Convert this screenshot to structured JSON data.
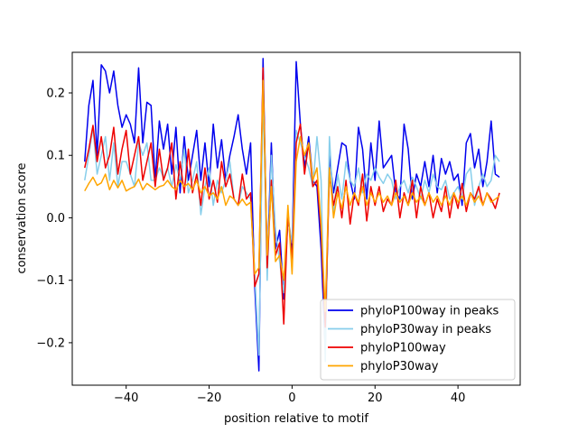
{
  "chart_data": {
    "type": "line",
    "title": "",
    "xlabel": "position relative to motif",
    "ylabel": "conservation score",
    "xlim": [
      -53,
      55
    ],
    "ylim": [
      -0.268,
      0.265
    ],
    "xticks": [
      -40,
      -20,
      0,
      20,
      40
    ],
    "yticks": [
      -0.2,
      -0.1,
      0.0,
      0.1,
      0.2
    ],
    "xtick_labels": [
      "−40",
      "−20",
      "0",
      "20",
      "40"
    ],
    "ytick_labels": [
      "−0.2",
      "−0.1",
      "0.0",
      "0.1",
      "0.2"
    ],
    "grid": false,
    "legend_position": "lower-right",
    "x": [
      -50,
      -49,
      -48,
      -47,
      -46,
      -45,
      -44,
      -43,
      -42,
      -41,
      -40,
      -39,
      -38,
      -37,
      -36,
      -35,
      -34,
      -33,
      -32,
      -31,
      -30,
      -29,
      -28,
      -27,
      -26,
      -25,
      -24,
      -23,
      -22,
      -21,
      -20,
      -19,
      -18,
      -17,
      -16,
      -15,
      -14,
      -13,
      -12,
      -11,
      -10,
      -9,
      -8,
      -7,
      -6,
      -5,
      -4,
      -3,
      -2,
      -1,
      0,
      1,
      2,
      3,
      4,
      5,
      6,
      7,
      8,
      9,
      10,
      11,
      12,
      13,
      14,
      15,
      16,
      17,
      18,
      19,
      20,
      21,
      22,
      23,
      24,
      25,
      26,
      27,
      28,
      29,
      30,
      31,
      32,
      33,
      34,
      35,
      36,
      37,
      38,
      39,
      40,
      41,
      42,
      43,
      44,
      45,
      46,
      47,
      48,
      49,
      50
    ],
    "series": [
      {
        "name": "phyloP100way in peaks",
        "color": "#0000ee",
        "values": [
          0.09,
          0.18,
          0.22,
          0.1,
          0.245,
          0.235,
          0.2,
          0.235,
          0.18,
          0.145,
          0.165,
          0.15,
          0.12,
          0.24,
          0.12,
          0.185,
          0.18,
          0.06,
          0.155,
          0.11,
          0.15,
          0.07,
          0.145,
          0.04,
          0.13,
          0.06,
          0.1,
          0.14,
          0.06,
          0.12,
          0.05,
          0.15,
          0.08,
          0.125,
          0.06,
          0.1,
          0.13,
          0.165,
          0.11,
          0.07,
          0.12,
          -0.11,
          -0.245,
          0.255,
          -0.08,
          0.12,
          -0.05,
          -0.02,
          -0.13,
          0.0,
          -0.05,
          0.25,
          0.15,
          0.08,
          0.13,
          0.06,
          0.05,
          -0.05,
          -0.21,
          0.1,
          0.04,
          0.08,
          0.12,
          0.115,
          0.06,
          0.03,
          0.145,
          0.11,
          0.03,
          0.12,
          0.06,
          0.155,
          0.08,
          0.09,
          0.1,
          0.04,
          0.03,
          0.15,
          0.11,
          0.03,
          0.07,
          0.05,
          0.09,
          0.05,
          0.1,
          0.04,
          0.095,
          0.07,
          0.09,
          0.06,
          0.07,
          0.02,
          0.12,
          0.135,
          0.08,
          0.11,
          0.05,
          0.09,
          0.155,
          0.07,
          0.065
        ]
      },
      {
        "name": "phyloP30way in peaks",
        "color": "#87ceeb",
        "values": [
          0.06,
          0.1,
          0.145,
          0.07,
          0.1,
          0.13,
          0.06,
          0.12,
          0.05,
          0.09,
          0.09,
          0.07,
          0.05,
          0.12,
          0.1,
          0.12,
          0.06,
          0.06,
          0.08,
          0.065,
          0.08,
          0.05,
          0.085,
          0.06,
          0.11,
          0.04,
          0.06,
          0.09,
          0.005,
          0.05,
          0.08,
          0.02,
          0.06,
          0.04,
          0.06,
          0.09,
          0.03,
          0.02,
          0.05,
          0.04,
          0.03,
          -0.09,
          -0.22,
          0.2,
          -0.1,
          0.1,
          -0.02,
          -0.07,
          -0.12,
          0.0,
          -0.04,
          0.14,
          0.12,
          0.1,
          0.08,
          0.05,
          0.13,
          0.06,
          -0.23,
          0.13,
          0.01,
          0.07,
          0.03,
          0.09,
          0.06,
          0.05,
          0.08,
          0.04,
          0.07,
          0.06,
          0.08,
          0.065,
          0.055,
          0.07,
          0.06,
          0.03,
          0.05,
          0.06,
          0.04,
          0.065,
          0.05,
          0.03,
          0.06,
          0.04,
          0.07,
          0.05,
          0.045,
          0.06,
          0.03,
          0.04,
          0.05,
          0.03,
          0.07,
          0.08,
          0.02,
          0.05,
          0.07,
          0.05,
          0.06,
          0.1,
          0.09
        ]
      },
      {
        "name": "phyloP100way",
        "color": "#ee0000",
        "values": [
          0.08,
          0.11,
          0.148,
          0.09,
          0.13,
          0.08,
          0.1,
          0.145,
          0.07,
          0.11,
          0.14,
          0.07,
          0.1,
          0.13,
          0.06,
          0.09,
          0.12,
          0.05,
          0.11,
          0.06,
          0.08,
          0.12,
          0.03,
          0.09,
          0.04,
          0.11,
          0.04,
          0.07,
          0.02,
          0.08,
          0.03,
          0.06,
          0.025,
          0.09,
          0.05,
          0.07,
          0.03,
          0.02,
          0.07,
          0.03,
          0.04,
          -0.11,
          -0.09,
          0.24,
          -0.08,
          0.06,
          -0.06,
          -0.04,
          -0.17,
          0.01,
          -0.07,
          0.12,
          0.15,
          0.07,
          0.12,
          0.05,
          0.06,
          -0.02,
          -0.175,
          0.07,
          0.02,
          0.05,
          0.0,
          0.06,
          -0.01,
          0.04,
          0.02,
          0.07,
          -0.005,
          0.05,
          0.02,
          0.05,
          0.01,
          0.03,
          0.02,
          0.06,
          0.0,
          0.04,
          0.02,
          0.06,
          0.0,
          0.05,
          0.02,
          0.04,
          0.0,
          0.03,
          0.01,
          0.05,
          0.0,
          0.04,
          0.015,
          0.055,
          0.01,
          0.04,
          0.03,
          0.05,
          0.02,
          0.04,
          0.03,
          0.015,
          0.04
        ]
      },
      {
        "name": "phyloP30way",
        "color": "#ffa500",
        "values": [
          0.043,
          0.055,
          0.065,
          0.052,
          0.056,
          0.07,
          0.045,
          0.06,
          0.048,
          0.06,
          0.043,
          0.047,
          0.05,
          0.062,
          0.045,
          0.055,
          0.05,
          0.045,
          0.05,
          0.052,
          0.06,
          0.05,
          0.045,
          0.06,
          0.05,
          0.055,
          0.045,
          0.06,
          0.04,
          0.05,
          0.035,
          0.04,
          0.03,
          0.05,
          0.02,
          0.035,
          0.03,
          0.02,
          0.03,
          0.02,
          0.025,
          -0.09,
          -0.08,
          0.22,
          -0.06,
          0.05,
          -0.07,
          -0.06,
          -0.1,
          0.02,
          -0.09,
          0.09,
          0.13,
          0.1,
          0.12,
          0.06,
          0.08,
          -0.01,
          -0.15,
          0.08,
          0.0,
          0.04,
          0.015,
          0.05,
          0.02,
          0.04,
          0.025,
          0.05,
          0.02,
          0.04,
          0.025,
          0.04,
          0.025,
          0.035,
          0.02,
          0.04,
          0.025,
          0.035,
          0.02,
          0.04,
          0.025,
          0.035,
          0.02,
          0.04,
          0.025,
          0.035,
          0.02,
          0.035,
          0.02,
          0.04,
          0.025,
          0.035,
          0.02,
          0.04,
          0.025,
          0.035,
          0.02,
          0.04,
          0.025,
          0.03,
          0.035
        ]
      }
    ]
  }
}
